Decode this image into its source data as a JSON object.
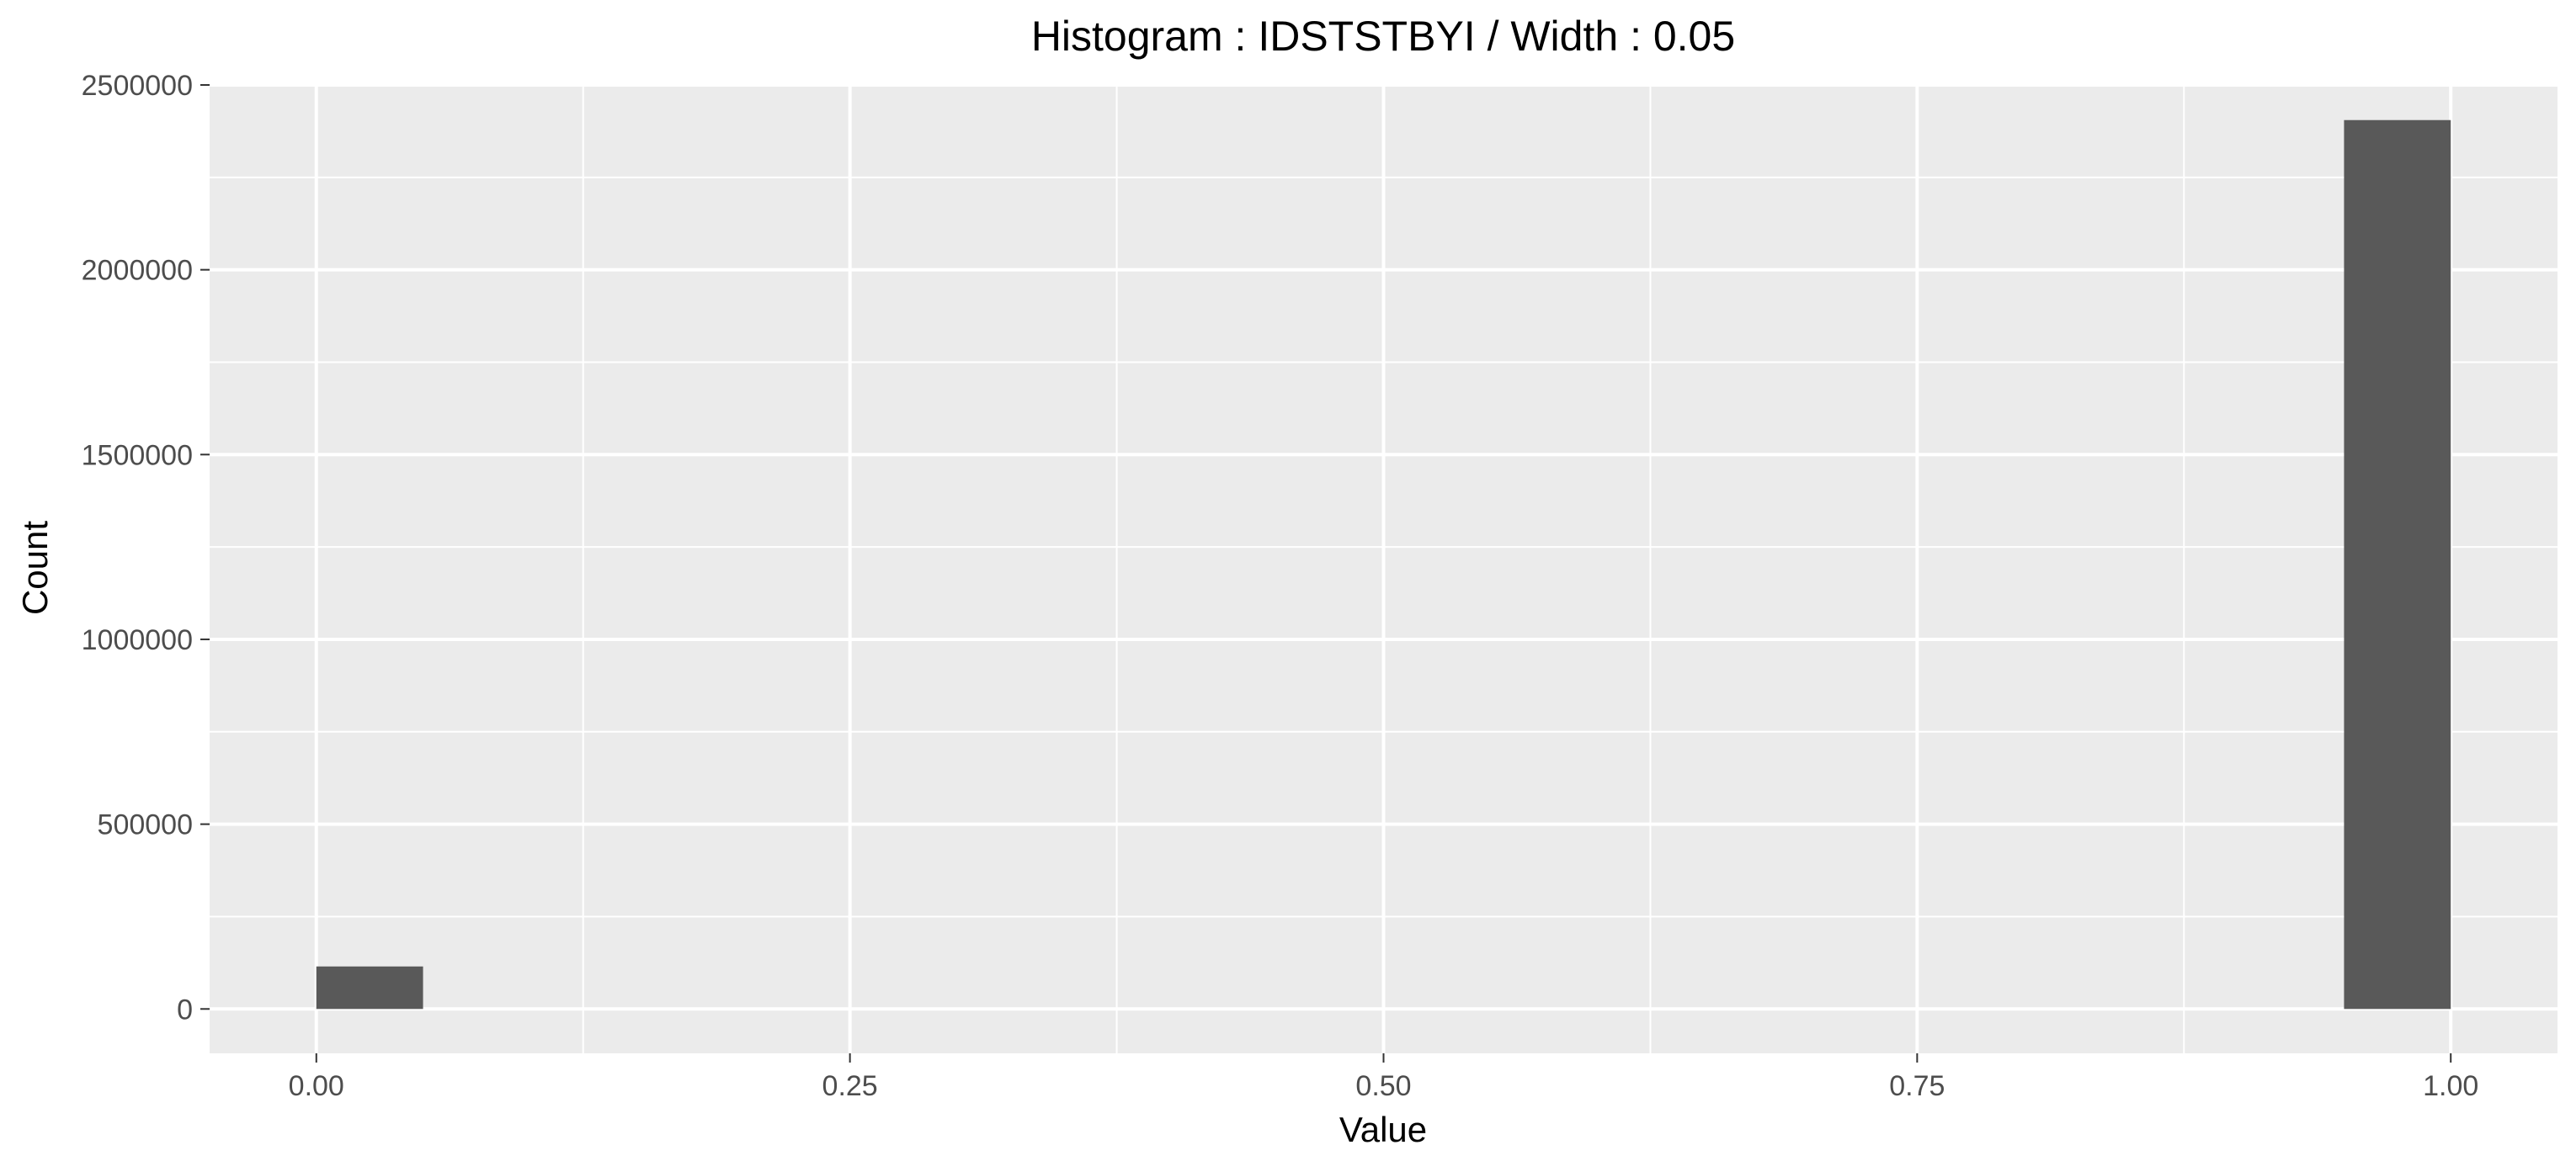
{
  "chart_data": {
    "type": "bar",
    "title": "Histogram : IDSTSTBYI / Width : 0.05",
    "xlabel": "Value",
    "ylabel": "Count",
    "bin_width": 0.05,
    "bins": [
      {
        "x_start": 0.0,
        "x_end": 0.05,
        "count": 115000
      },
      {
        "x_start": 0.95,
        "x_end": 1.0,
        "count": 2405000
      }
    ],
    "xlim": [
      -0.05,
      1.05
    ],
    "ylim": [
      -120000,
      2500000
    ],
    "x_ticks": [
      "0.00",
      "0.25",
      "0.50",
      "0.75",
      "1.00"
    ],
    "x_tick_values": [
      0,
      0.25,
      0.5,
      0.75,
      1.0
    ],
    "x_minor_values": [
      0.125,
      0.375,
      0.625,
      0.875
    ],
    "y_ticks": [
      "0",
      "500000",
      "1000000",
      "1500000",
      "2000000",
      "2500000"
    ],
    "y_tick_values": [
      0,
      500000,
      1000000,
      1500000,
      2000000,
      2500000
    ],
    "y_minor_values": [
      250000,
      750000,
      1250000,
      1750000,
      2250000
    ],
    "grid": true,
    "colors": {
      "panel": "#ebebeb",
      "grid": "#ffffff",
      "bar": "#595959",
      "tick": "#333333"
    }
  }
}
